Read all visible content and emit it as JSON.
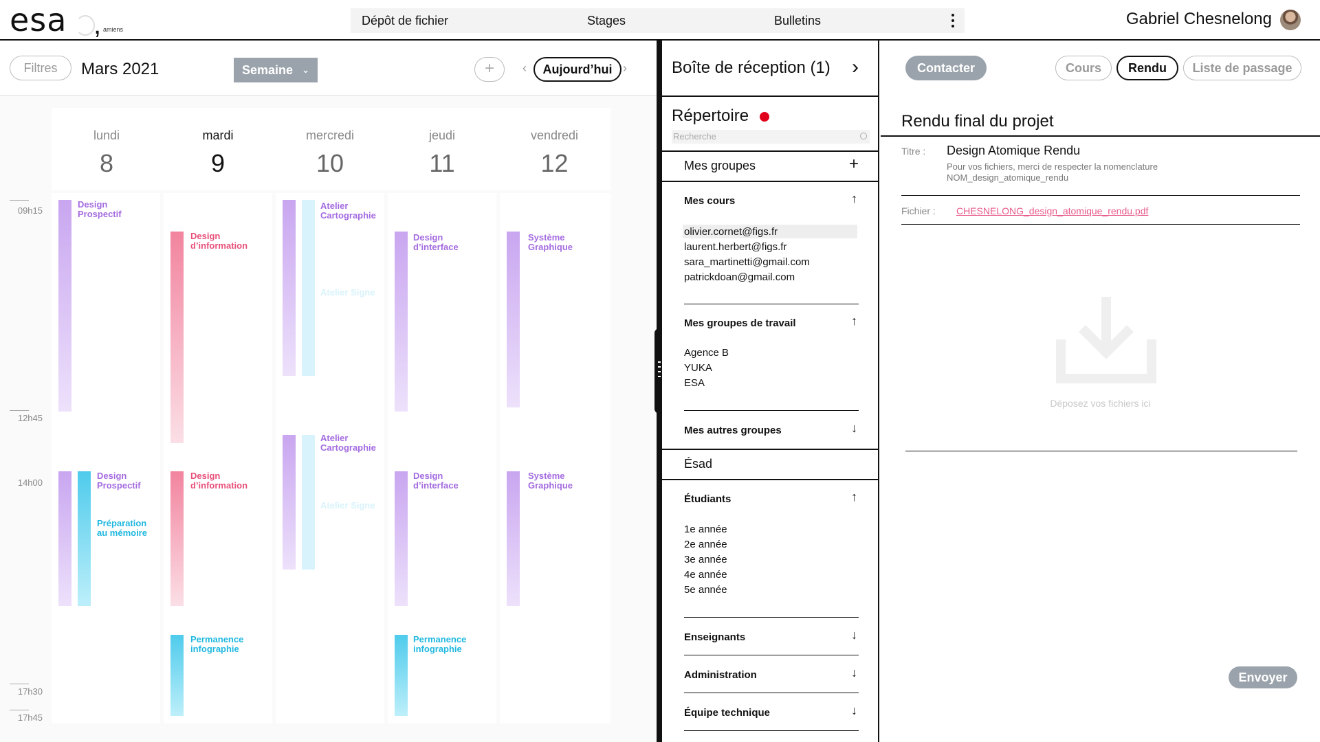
{
  "logo": {
    "text": "esa",
    "subtitle": "amiens"
  },
  "nav": {
    "items": [
      "Dépôt de fichier",
      "Stages",
      "Bulletins"
    ]
  },
  "user": {
    "name": "Gabriel Chesnelong"
  },
  "calendar": {
    "filters_label": "Filtres",
    "month": "Mars 2021",
    "view_label": "Semaine",
    "add_label": "+",
    "today_label": "Aujourd’hui",
    "prev": "‹",
    "next": "›",
    "days": [
      {
        "name": "lundi",
        "num": "8"
      },
      {
        "name": "mardi",
        "num": "9"
      },
      {
        "name": "mercredi",
        "num": "10"
      },
      {
        "name": "jeudi",
        "num": "11"
      },
      {
        "name": "vendredi",
        "num": "12"
      }
    ],
    "times": [
      "09h15",
      "12h45",
      "14h00",
      "17h30",
      "17h45"
    ],
    "events": {
      "mon_am": "Design Prospectif",
      "mon_pm1": "Design Prospectif",
      "mon_pm2": "Préparation au mémoire",
      "tue_am": "Design d’information",
      "tue_pm": "Design d’information",
      "tue_late": "Permanence infographie",
      "wed_am1": "Atelier Cartographie",
      "wed_am2": "Atelier Signe",
      "wed_pm1": "Atelier Cartographie",
      "wed_pm2": "Atelier Signe",
      "thu_am": "Design d’interface",
      "thu_pm": "Design d’interface",
      "thu_late": "Permanence infographie",
      "fri_am": "Système Graphique",
      "fri_pm": "Système Graphique"
    },
    "colors": {
      "purple": "#a46be0",
      "pink": "#e8507a",
      "cyan": "#20b8e0",
      "cyan_light": "#d8f3fb"
    }
  },
  "directory": {
    "inbox": "Boîte de réception (1)",
    "inbox_arrow": "›",
    "repertoire": "Répertoire",
    "search_placeholder": "Recherche",
    "my_groups": "Mes groupes",
    "my_groups_add": "+",
    "my_courses": "Mes cours",
    "courses": [
      "olivier.cornet@figs.fr",
      "laurent.herbert@figs.fr",
      "sara_martinetti@gmail.com",
      "patrickdoan@gmail.com"
    ],
    "work_groups": "Mes groupes de travail",
    "work_groups_list": [
      "Agence B",
      "YUKA",
      "ESA"
    ],
    "other_groups": "Mes autres groupes",
    "esad": "Ésad",
    "students": "Étudiants",
    "years": [
      "1e année",
      "2e année",
      "3e année",
      "4e année",
      "5e année"
    ],
    "teachers": "Enseignants",
    "administration": "Administration",
    "tech_team": "Équipe technique",
    "arrow_up": "↑",
    "arrow_down": "↓"
  },
  "detail": {
    "contact": "Contacter",
    "tabs": [
      "Cours",
      "Rendu",
      "Liste de passage"
    ],
    "title": "Rendu final du projet",
    "title_label": "Titre :",
    "title_value": "Design Atomique Rendu",
    "hint": "Pour vos fichiers, merci de respecter la nomenclature NOM_design_atomique_rendu",
    "file_label": "Fichier :",
    "file_value": "CHESNELONG_design_atomique_rendu.pdf",
    "drop_text": "Déposez vos fichiers ici",
    "send": "Envoyer"
  }
}
